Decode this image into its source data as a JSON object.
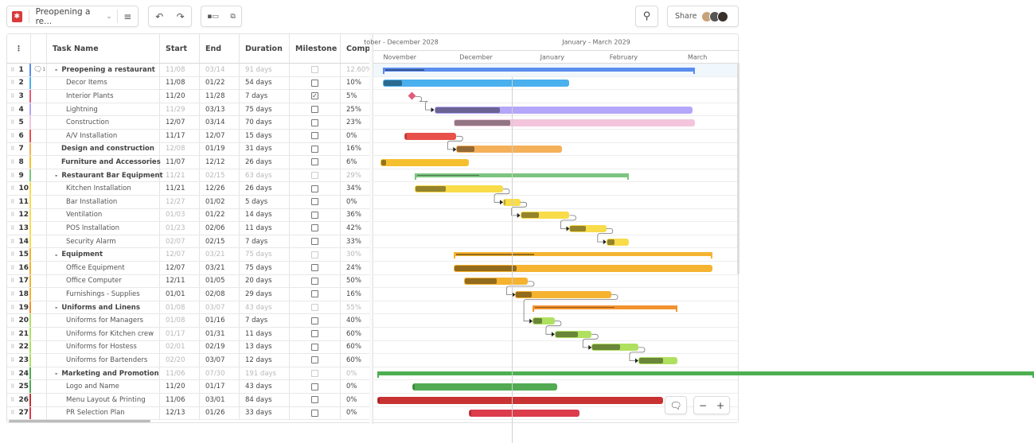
{
  "toolbar": {
    "project_title": "Preopening a re...",
    "share_label": "Share",
    "icons": [
      "app-logo-icon",
      "chevron-down-icon",
      "menu-icon",
      "undo-icon",
      "redo-icon",
      "indent-icon",
      "outdent-icon",
      "search-icon"
    ]
  },
  "columns": {
    "task_name": "Task Name",
    "start": "Start",
    "end": "End",
    "duration": "Duration",
    "milestone": "Milestone",
    "complete": "Comp"
  },
  "timeline": {
    "quarters": [
      {
        "label": "tober - December 2028"
      },
      {
        "label": "January - March 2029"
      }
    ],
    "months": [
      "November",
      "December",
      "January",
      "February",
      "March"
    ]
  },
  "tasks": [
    {
      "id": "1",
      "name": "Preopening a restaurant",
      "start": "11/08",
      "end": "03/14",
      "duration": "91 days",
      "milestone": false,
      "complete": "12.60%",
      "summary": true,
      "comments": "1",
      "color": "#5b8def",
      "progress": 0.126
    },
    {
      "id": "2",
      "name": "Decor Items",
      "start": "11/08",
      "end": "01/22",
      "duration": "54 days",
      "milestone": false,
      "complete": "10%",
      "color": "#4ab0ee",
      "progress": 0.1
    },
    {
      "id": "3",
      "name": "Interior Plants",
      "start": "11/20",
      "end": "11/28",
      "duration": "7 days",
      "milestone": true,
      "complete": "5%",
      "color": "#e25c7a",
      "progress": 0.05
    },
    {
      "id": "4",
      "name": "Lightning",
      "start": "11/29",
      "end": "03/13",
      "duration": "75 days",
      "milestone": false,
      "complete": "25%",
      "color": "#b4a6f8",
      "progress": 0.25,
      "startAuto": true
    },
    {
      "id": "5",
      "name": "Construction",
      "start": "12/07",
      "end": "03/14",
      "duration": "70 days",
      "milestone": false,
      "complete": "23%",
      "color": "#f3c4dc",
      "progress": 0.23
    },
    {
      "id": "6",
      "name": "A/V Installation",
      "start": "11/17",
      "end": "12/07",
      "duration": "15 days",
      "milestone": false,
      "complete": "0%",
      "color": "#e8504a",
      "progress": 0
    },
    {
      "id": "7",
      "name": "Design and construction",
      "start": "12/08",
      "end": "01/19",
      "duration": "31 days",
      "milestone": false,
      "complete": "16%",
      "bold": true,
      "color": "#f5b05a",
      "progress": 0.16,
      "startAuto": true
    },
    {
      "id": "8",
      "name": "Furniture and Accessories",
      "start": "11/07",
      "end": "12/12",
      "duration": "26 days",
      "milestone": false,
      "complete": "6%",
      "bold": true,
      "color": "#f5c030",
      "progress": 0.06
    },
    {
      "id": "9",
      "name": "Restaurant Bar Equipment",
      "start": "11/21",
      "end": "02/15",
      "duration": "63 days",
      "milestone": false,
      "complete": "29%",
      "summary": true,
      "color": "#7cc47f",
      "progress": 0.29
    },
    {
      "id": "10",
      "name": "Kitchen Installation",
      "start": "11/21",
      "end": "12/26",
      "duration": "26 days",
      "milestone": false,
      "complete": "34%",
      "color": "#f8dc4a",
      "progress": 0.34
    },
    {
      "id": "11",
      "name": "Bar Installation",
      "start": "12/27",
      "end": "01/02",
      "duration": "5 days",
      "milestone": false,
      "complete": "0%",
      "color": "#f8dc4a",
      "progress": 0,
      "startAuto": true
    },
    {
      "id": "12",
      "name": "Ventilation",
      "start": "01/03",
      "end": "01/22",
      "duration": "14 days",
      "milestone": false,
      "complete": "36%",
      "color": "#f8dc4a",
      "progress": 0.36,
      "startAuto": true
    },
    {
      "id": "13",
      "name": "POS Installation",
      "start": "01/23",
      "end": "02/06",
      "duration": "11 days",
      "milestone": false,
      "complete": "42%",
      "color": "#f8dc4a",
      "progress": 0.42,
      "startAuto": true
    },
    {
      "id": "14",
      "name": "Security Alarm",
      "start": "02/07",
      "end": "02/15",
      "duration": "7 days",
      "milestone": false,
      "complete": "33%",
      "color": "#f8dc4a",
      "progress": 0.33,
      "startAuto": true
    },
    {
      "id": "15",
      "name": "Equipment",
      "start": "12/07",
      "end": "03/21",
      "duration": "75 days",
      "milestone": false,
      "complete": "30%",
      "summary": true,
      "color": "#f5b330",
      "progress": 0.3
    },
    {
      "id": "16",
      "name": "Office Equipment",
      "start": "12/07",
      "end": "03/21",
      "duration": "75 days",
      "milestone": false,
      "complete": "24%",
      "color": "#f5b330",
      "progress": 0.24
    },
    {
      "id": "17",
      "name": "Office Computer",
      "start": "12/11",
      "end": "01/05",
      "duration": "20 days",
      "milestone": false,
      "complete": "50%",
      "color": "#f5b330",
      "progress": 0.5
    },
    {
      "id": "18",
      "name": "Furnishings - Supplies",
      "start": "01/01",
      "end": "02/08",
      "duration": "29 days",
      "milestone": false,
      "complete": "16%",
      "color": "#f5b330",
      "progress": 0.16
    },
    {
      "id": "19",
      "name": "Uniforms and Linens",
      "start": "01/08",
      "end": "03/07",
      "duration": "43 days",
      "milestone": false,
      "complete": "55%",
      "summary": true,
      "color": "#f39330",
      "progress": 0.55
    },
    {
      "id": "20",
      "name": "Uniforms for Managers",
      "start": "01/08",
      "end": "01/16",
      "duration": "7 days",
      "milestone": false,
      "complete": "40%",
      "color": "#b0e060",
      "progress": 0.4,
      "startAuto": true
    },
    {
      "id": "21",
      "name": "Uniforms for Kitchen crew",
      "start": "01/17",
      "end": "01/31",
      "duration": "11 days",
      "milestone": false,
      "complete": "60%",
      "color": "#b0e060",
      "progress": 0.6,
      "startAuto": true
    },
    {
      "id": "22",
      "name": "Uniforms for Hostess",
      "start": "02/01",
      "end": "02/19",
      "duration": "13 days",
      "milestone": false,
      "complete": "60%",
      "color": "#b0e060",
      "progress": 0.6,
      "startAuto": true
    },
    {
      "id": "23",
      "name": "Uniforms for Bartenders",
      "start": "02/20",
      "end": "03/07",
      "duration": "12 days",
      "milestone": false,
      "complete": "60%",
      "color": "#b0e060",
      "progress": 0.6,
      "startAuto": true
    },
    {
      "id": "24",
      "name": "Marketing and Promotion",
      "start": "11/06",
      "end": "07/30",
      "duration": "191 days",
      "milestone": false,
      "complete": "0%",
      "summary": true,
      "color": "#4caf50",
      "progress": 0
    },
    {
      "id": "25",
      "name": "Logo and Name",
      "start": "11/20",
      "end": "01/17",
      "duration": "43 days",
      "milestone": false,
      "complete": "0%",
      "color": "#52ab52",
      "progress": 0
    },
    {
      "id": "26",
      "name": "Menu Layout & Printing",
      "start": "11/06",
      "end": "03/01",
      "duration": "84 days",
      "milestone": false,
      "complete": "0%",
      "color": "#c93232",
      "progress": 0
    },
    {
      "id": "27",
      "name": "PR Selection Plan",
      "start": "12/13",
      "end": "01/26",
      "duration": "33 days",
      "milestone": false,
      "complete": "0%",
      "color": "#dc3c4c",
      "progress": 0
    }
  ],
  "dependencies": [
    [
      "3",
      "4"
    ],
    [
      "6",
      "7"
    ],
    [
      "10",
      "11"
    ],
    [
      "11",
      "12"
    ],
    [
      "12",
      "13"
    ],
    [
      "13",
      "14"
    ],
    [
      "17",
      "18"
    ],
    [
      "18",
      "20"
    ],
    [
      "20",
      "21"
    ],
    [
      "21",
      "22"
    ],
    [
      "22",
      "23"
    ]
  ],
  "zoom_controls": {
    "minus": "−",
    "plus": "+"
  }
}
